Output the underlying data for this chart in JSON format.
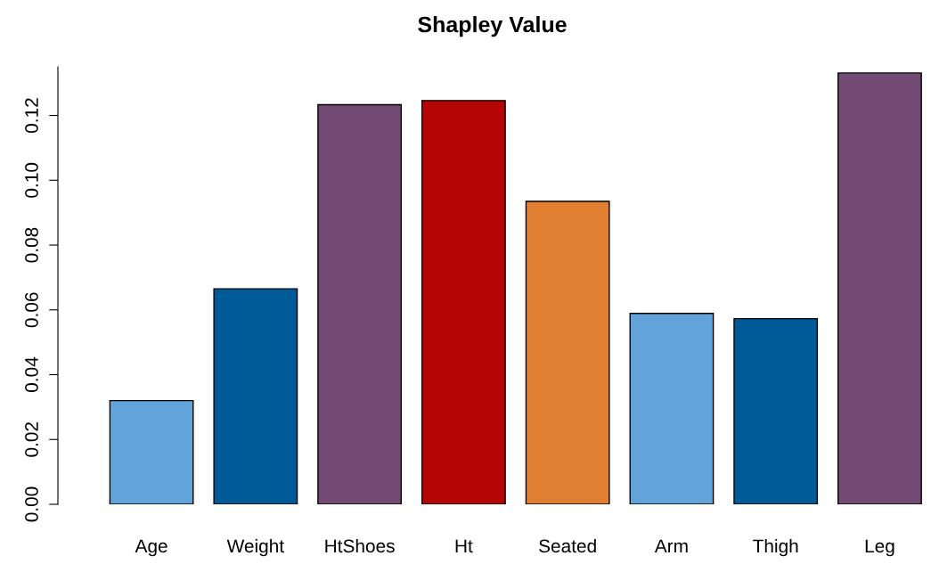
{
  "chart_data": {
    "type": "bar",
    "title": "Shapley Value",
    "categories": [
      "Age",
      "Weight",
      "HtShoes",
      "Ht",
      "Seated",
      "Arm",
      "Thigh",
      "Leg"
    ],
    "values": [
      0.032,
      0.0665,
      0.1233,
      0.1246,
      0.0935,
      0.0589,
      0.0573,
      0.1331
    ],
    "colors": [
      "#62a3d9",
      "#015a98",
      "#724a73",
      "#b50606",
      "#e07f31",
      "#62a3d9",
      "#015a98",
      "#724a73"
    ],
    "ylim": [
      0,
      0.135
    ],
    "yticks": [
      {
        "value": 0,
        "label": "0.00"
      },
      {
        "value": 0.02,
        "label": "0.02"
      },
      {
        "value": 0.04,
        "label": "0.04"
      },
      {
        "value": 0.06,
        "label": "0.06"
      },
      {
        "value": 0.08,
        "label": "0.08"
      },
      {
        "value": 0.1,
        "label": "0.10"
      },
      {
        "value": 0.12,
        "label": "0.12"
      }
    ],
    "grid": false
  }
}
